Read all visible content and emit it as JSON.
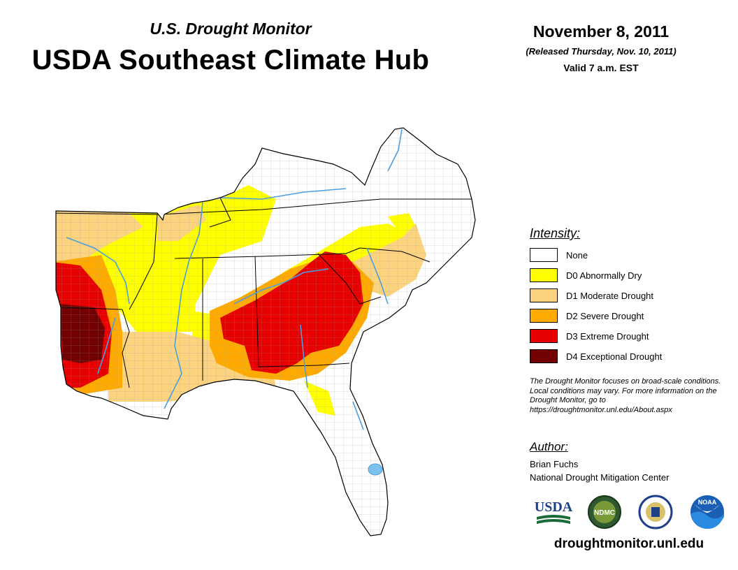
{
  "header": {
    "subtitle": "U.S. Drought Monitor",
    "title": "USDA Southeast Climate Hub",
    "date": "November 8, 2011",
    "released": "(Released Thursday, Nov. 10, 2011)",
    "valid": "Valid 7 a.m. EST"
  },
  "legend": {
    "heading": "Intensity:",
    "items": [
      {
        "label": "None",
        "color": "#ffffff"
      },
      {
        "label": "D0 Abnormally Dry",
        "color": "#ffff00"
      },
      {
        "label": "D1 Moderate Drought",
        "color": "#fcd37f"
      },
      {
        "label": "D2 Severe Drought",
        "color": "#ffaa00"
      },
      {
        "label": "D3 Extreme Drought",
        "color": "#e60000"
      },
      {
        "label": "D4 Exceptional Drought",
        "color": "#730000"
      }
    ]
  },
  "note": "The Drought Monitor focuses on broad-scale conditions. Local conditions may vary. For more information on the Drought Monitor, go to https://droughtmonitor.unl.edu/About.aspx",
  "author": {
    "heading": "Author:",
    "name": "Brian Fuchs",
    "org": "National Drought Mitigation Center"
  },
  "logos": {
    "usda": "USDA",
    "ndmc": "NDMC",
    "noaa": "NOAA"
  },
  "website": "droughtmonitor.unl.edu",
  "colors": {
    "water": "#4a9fe0",
    "border": "#000000"
  }
}
